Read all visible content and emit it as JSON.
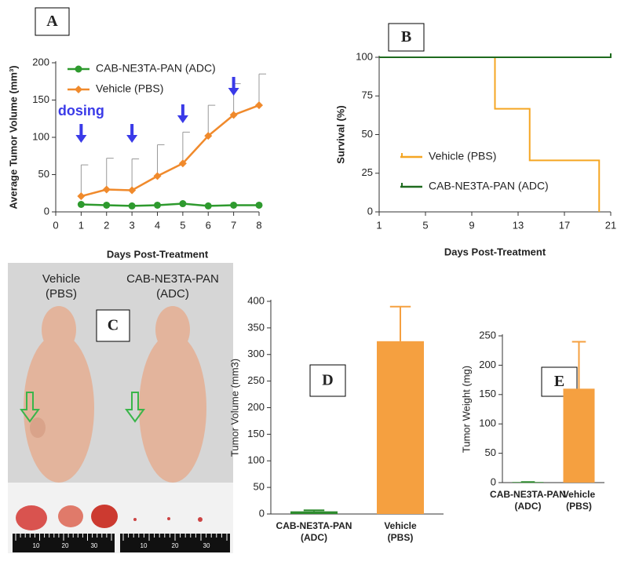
{
  "chart_data": [
    {
      "panel": "A",
      "type": "line",
      "xlabel": "Days Post-Treatment",
      "ylabel": "Average Tumor Volume (mm³)",
      "x": [
        1,
        2,
        3,
        4,
        5,
        6,
        7,
        8
      ],
      "xlim": [
        0,
        8
      ],
      "xticks": [
        0,
        1,
        2,
        3,
        4,
        5,
        6,
        7,
        8
      ],
      "ylim": [
        0,
        200
      ],
      "yticks": [
        0,
        50,
        100,
        150,
        200
      ],
      "legend": "upper left",
      "annotation": {
        "text": "dosing",
        "x": [
          1,
          3,
          5,
          7
        ]
      },
      "series": [
        {
          "name": "CAB-NE3TA-PAN (ADC)",
          "color": "#2e9a2e",
          "marker": "circle",
          "values": [
            10,
            9,
            8,
            9,
            11,
            8,
            9,
            9
          ]
        },
        {
          "name": "Vehicle (PBS)",
          "color": "#f08a2c",
          "marker": "diamond",
          "values": [
            21,
            30,
            29,
            48,
            65,
            102,
            130,
            143
          ],
          "errors": [
            42,
            42,
            42,
            42,
            42,
            41,
            42,
            42
          ]
        }
      ]
    },
    {
      "panel": "B",
      "type": "step",
      "xlabel": "Days Post-Treatment",
      "ylabel": "Survival (%)",
      "xlim": [
        1,
        21
      ],
      "xticks": [
        1,
        5,
        9,
        13,
        17,
        21
      ],
      "ylim": [
        0,
        100
      ],
      "yticks": [
        0,
        25,
        50,
        75,
        100
      ],
      "legend": "lower left",
      "series": [
        {
          "name": "Vehicle (PBS)",
          "color": "#f5a623",
          "x": [
            1,
            11,
            14,
            20
          ],
          "values": [
            100,
            66.7,
            33.3,
            0
          ]
        },
        {
          "name": "CAB-NE3TA-PAN (ADC)",
          "color": "#1e6b1e",
          "x": [
            1,
            21
          ],
          "values": [
            100,
            100
          ]
        }
      ]
    },
    {
      "panel": "D",
      "type": "bar",
      "ylabel": "Tumor Volume (mm3)",
      "categories": [
        [
          "CAB-NE3TA-PAN",
          "(ADC)"
        ],
        [
          "Vehicle",
          "(PBS)"
        ]
      ],
      "values": [
        5,
        325
      ],
      "errors": [
        2,
        65
      ],
      "colors": [
        "#2e8b2e",
        "#f5a040"
      ],
      "ylim": [
        0,
        400
      ],
      "yticks": [
        0,
        50,
        100,
        150,
        200,
        250,
        300,
        350,
        400
      ]
    },
    {
      "panel": "E",
      "type": "bar",
      "ylabel": "Tumor Weight (mg)",
      "categories": [
        [
          "CAB-NE3TA-PAN",
          "(ADC)"
        ],
        [
          "Vehicle",
          "(PBS)"
        ]
      ],
      "values": [
        1,
        160
      ],
      "errors": [
        0,
        80
      ],
      "colors": [
        "#2e8b2e",
        "#f5a040"
      ],
      "ylim": [
        0,
        250
      ],
      "yticks": [
        0,
        50,
        100,
        150,
        200,
        250
      ]
    }
  ],
  "photo": {
    "panel": "C",
    "left_label": [
      "Vehicle",
      "(PBS)"
    ],
    "right_label": [
      "CAB-NE3TA-PAN",
      "(ADC)"
    ],
    "ruler_labels": [
      "10",
      "20",
      "30"
    ]
  }
}
